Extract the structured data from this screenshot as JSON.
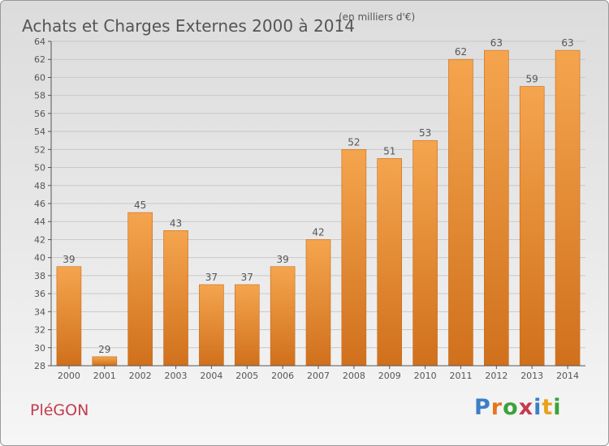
{
  "header": {
    "title": "Achats et Charges Externes 2000 à 2014",
    "subtitle": "(en milliers d'€)"
  },
  "footer": {
    "place": "PléGON",
    "brand": "Proxiti",
    "brand_colors": [
      "#3c7fc5",
      "#e8741c",
      "#3aa23a",
      "#c33c4e",
      "#3c7fc5",
      "#e8a21c",
      "#3aa23a"
    ]
  },
  "colors": {
    "bar_light": "#f5a54e",
    "bar_dark": "#d0701c",
    "grid": "#c8c8c8",
    "text": "#555555"
  },
  "chart_data": {
    "type": "bar",
    "title": "Achats et Charges Externes 2000 à 2014",
    "subtitle": "(en milliers d'€)",
    "categories": [
      "2000",
      "2001",
      "2002",
      "2003",
      "2004",
      "2005",
      "2006",
      "2007",
      "2008",
      "2009",
      "2010",
      "2011",
      "2012",
      "2013",
      "2014"
    ],
    "values": [
      39,
      29,
      45,
      43,
      37,
      37,
      39,
      42,
      52,
      51,
      53,
      62,
      63,
      59,
      63
    ],
    "ylim": [
      28,
      64
    ],
    "yticks": [
      28,
      30,
      32,
      34,
      36,
      38,
      40,
      42,
      44,
      46,
      48,
      50,
      52,
      54,
      56,
      58,
      60,
      62,
      64
    ],
    "grid": true,
    "xlabel": "",
    "ylabel": ""
  }
}
